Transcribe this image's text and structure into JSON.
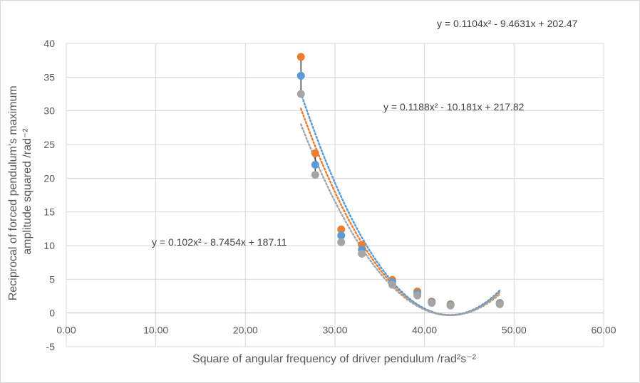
{
  "chart_data": {
    "type": "scatter",
    "xlabel": "Square of angular frequency of driver pendulum /rad²s⁻²",
    "ylabel_line1": "Reciprocal of forced pendulum's maximum",
    "ylabel_line2": "amplitude squared /rad⁻²",
    "xlim": [
      0,
      60
    ],
    "ylim": [
      -5,
      40
    ],
    "grid": true,
    "legend": "none",
    "x_ticks": [
      0,
      10,
      20,
      30,
      40,
      50,
      60
    ],
    "x_tick_labels": [
      "0.00",
      "10.00",
      "20.00",
      "30.00",
      "40.00",
      "50.00",
      "60.00"
    ],
    "y_ticks": [
      -5,
      0,
      5,
      10,
      15,
      20,
      25,
      30,
      35,
      40
    ],
    "y_tick_labels": [
      "-5",
      "0",
      "5",
      "10",
      "15",
      "20",
      "25",
      "30",
      "35",
      "40"
    ],
    "x": [
      26.2,
      27.8,
      30.7,
      33.0,
      36.4,
      39.2,
      40.8,
      42.9,
      48.4
    ],
    "series": [
      {
        "color": "#ed7d31",
        "values": [
          38.0,
          23.7,
          12.4,
          10.1,
          4.9,
          3.2,
          1.7,
          1.3,
          1.5
        ]
      },
      {
        "color": "#5b9bd5",
        "values": [
          35.2,
          22.0,
          11.5,
          9.4,
          4.6,
          2.9,
          1.6,
          1.2,
          1.4
        ]
      },
      {
        "color": "#a5a5a5",
        "values": [
          32.5,
          20.5,
          10.5,
          8.8,
          4.2,
          2.6,
          1.5,
          1.1,
          1.3
        ]
      }
    ],
    "error_bar_color": "#404040",
    "trendlines": [
      {
        "series_color": "#ed7d31",
        "equation": "y = 0.1104x² - 9.4631x + 202.47",
        "a": 0.1104,
        "b": -9.4631,
        "c": 202.47
      },
      {
        "series_color": "#5b9bd5",
        "equation": "y = 0.1188x² - 10.181x + 217.82",
        "a": 0.1188,
        "b": -10.181,
        "c": 217.82
      },
      {
        "series_color": "#a5a5a5",
        "equation": "y = 0.102x² - 8.7454x + 187.11",
        "a": 0.102,
        "b": -8.7454,
        "c": 187.11
      }
    ]
  }
}
